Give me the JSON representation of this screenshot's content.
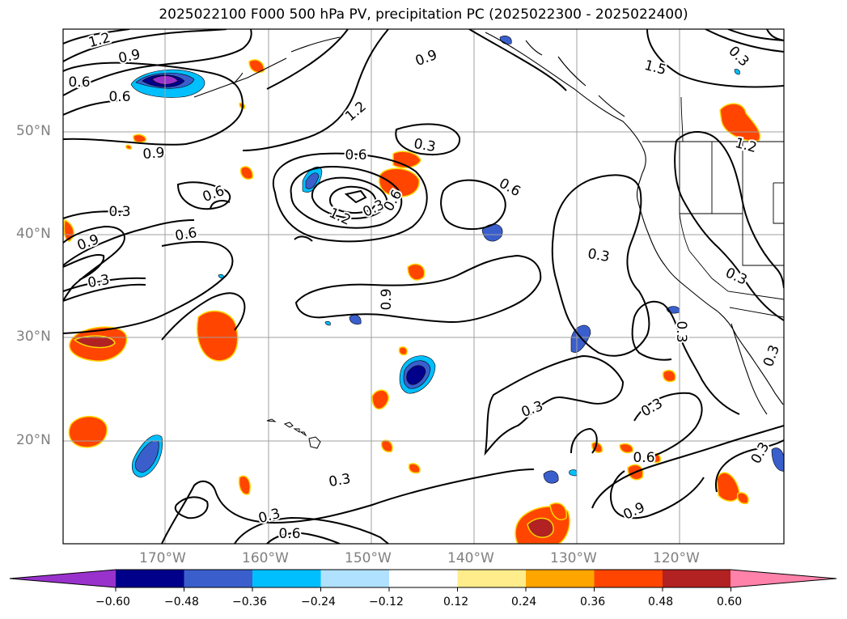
{
  "title": "2025022100 F000 500 hPa PV, precipitation PC (2025022300 - 2025022400)",
  "lat_labels": [
    "50°N",
    "40°N",
    "30°N",
    "20°N"
  ],
  "lon_labels": [
    "170°W",
    "160°W",
    "150°W",
    "140°W",
    "130°W",
    "120°W"
  ],
  "contour_labels": [
    "1.2",
    "0.9",
    "0.6",
    "0.6",
    "0.9",
    "0.6",
    "0.3",
    "0.6",
    "0.3",
    "0.9",
    "0.6",
    "1.2",
    "0.3",
    "0.6",
    "0.3",
    "0.6",
    "1.2",
    "0.9",
    "1.5",
    "1.2",
    "0.9",
    "0.3",
    "0.3",
    "0.3",
    "0.3",
    "0.3",
    "0.3",
    "0.3",
    "0.6",
    "0.3",
    "0.3",
    "0.6",
    "0.9",
    "0.3"
  ],
  "colorbar": {
    "ticks": [
      "−0.60",
      "−0.48",
      "−0.36",
      "−0.24",
      "−0.12",
      "0.12",
      "0.24",
      "0.36",
      "0.48",
      "0.60"
    ],
    "colors": [
      "#9932cc",
      "#00008b",
      "#3a5fcd",
      "#00bfff",
      "#b0e2ff",
      "#ffffff",
      "#ffec8b",
      "#ffa500",
      "#ff4500",
      "#b22222",
      "#ff82ab"
    ]
  }
}
